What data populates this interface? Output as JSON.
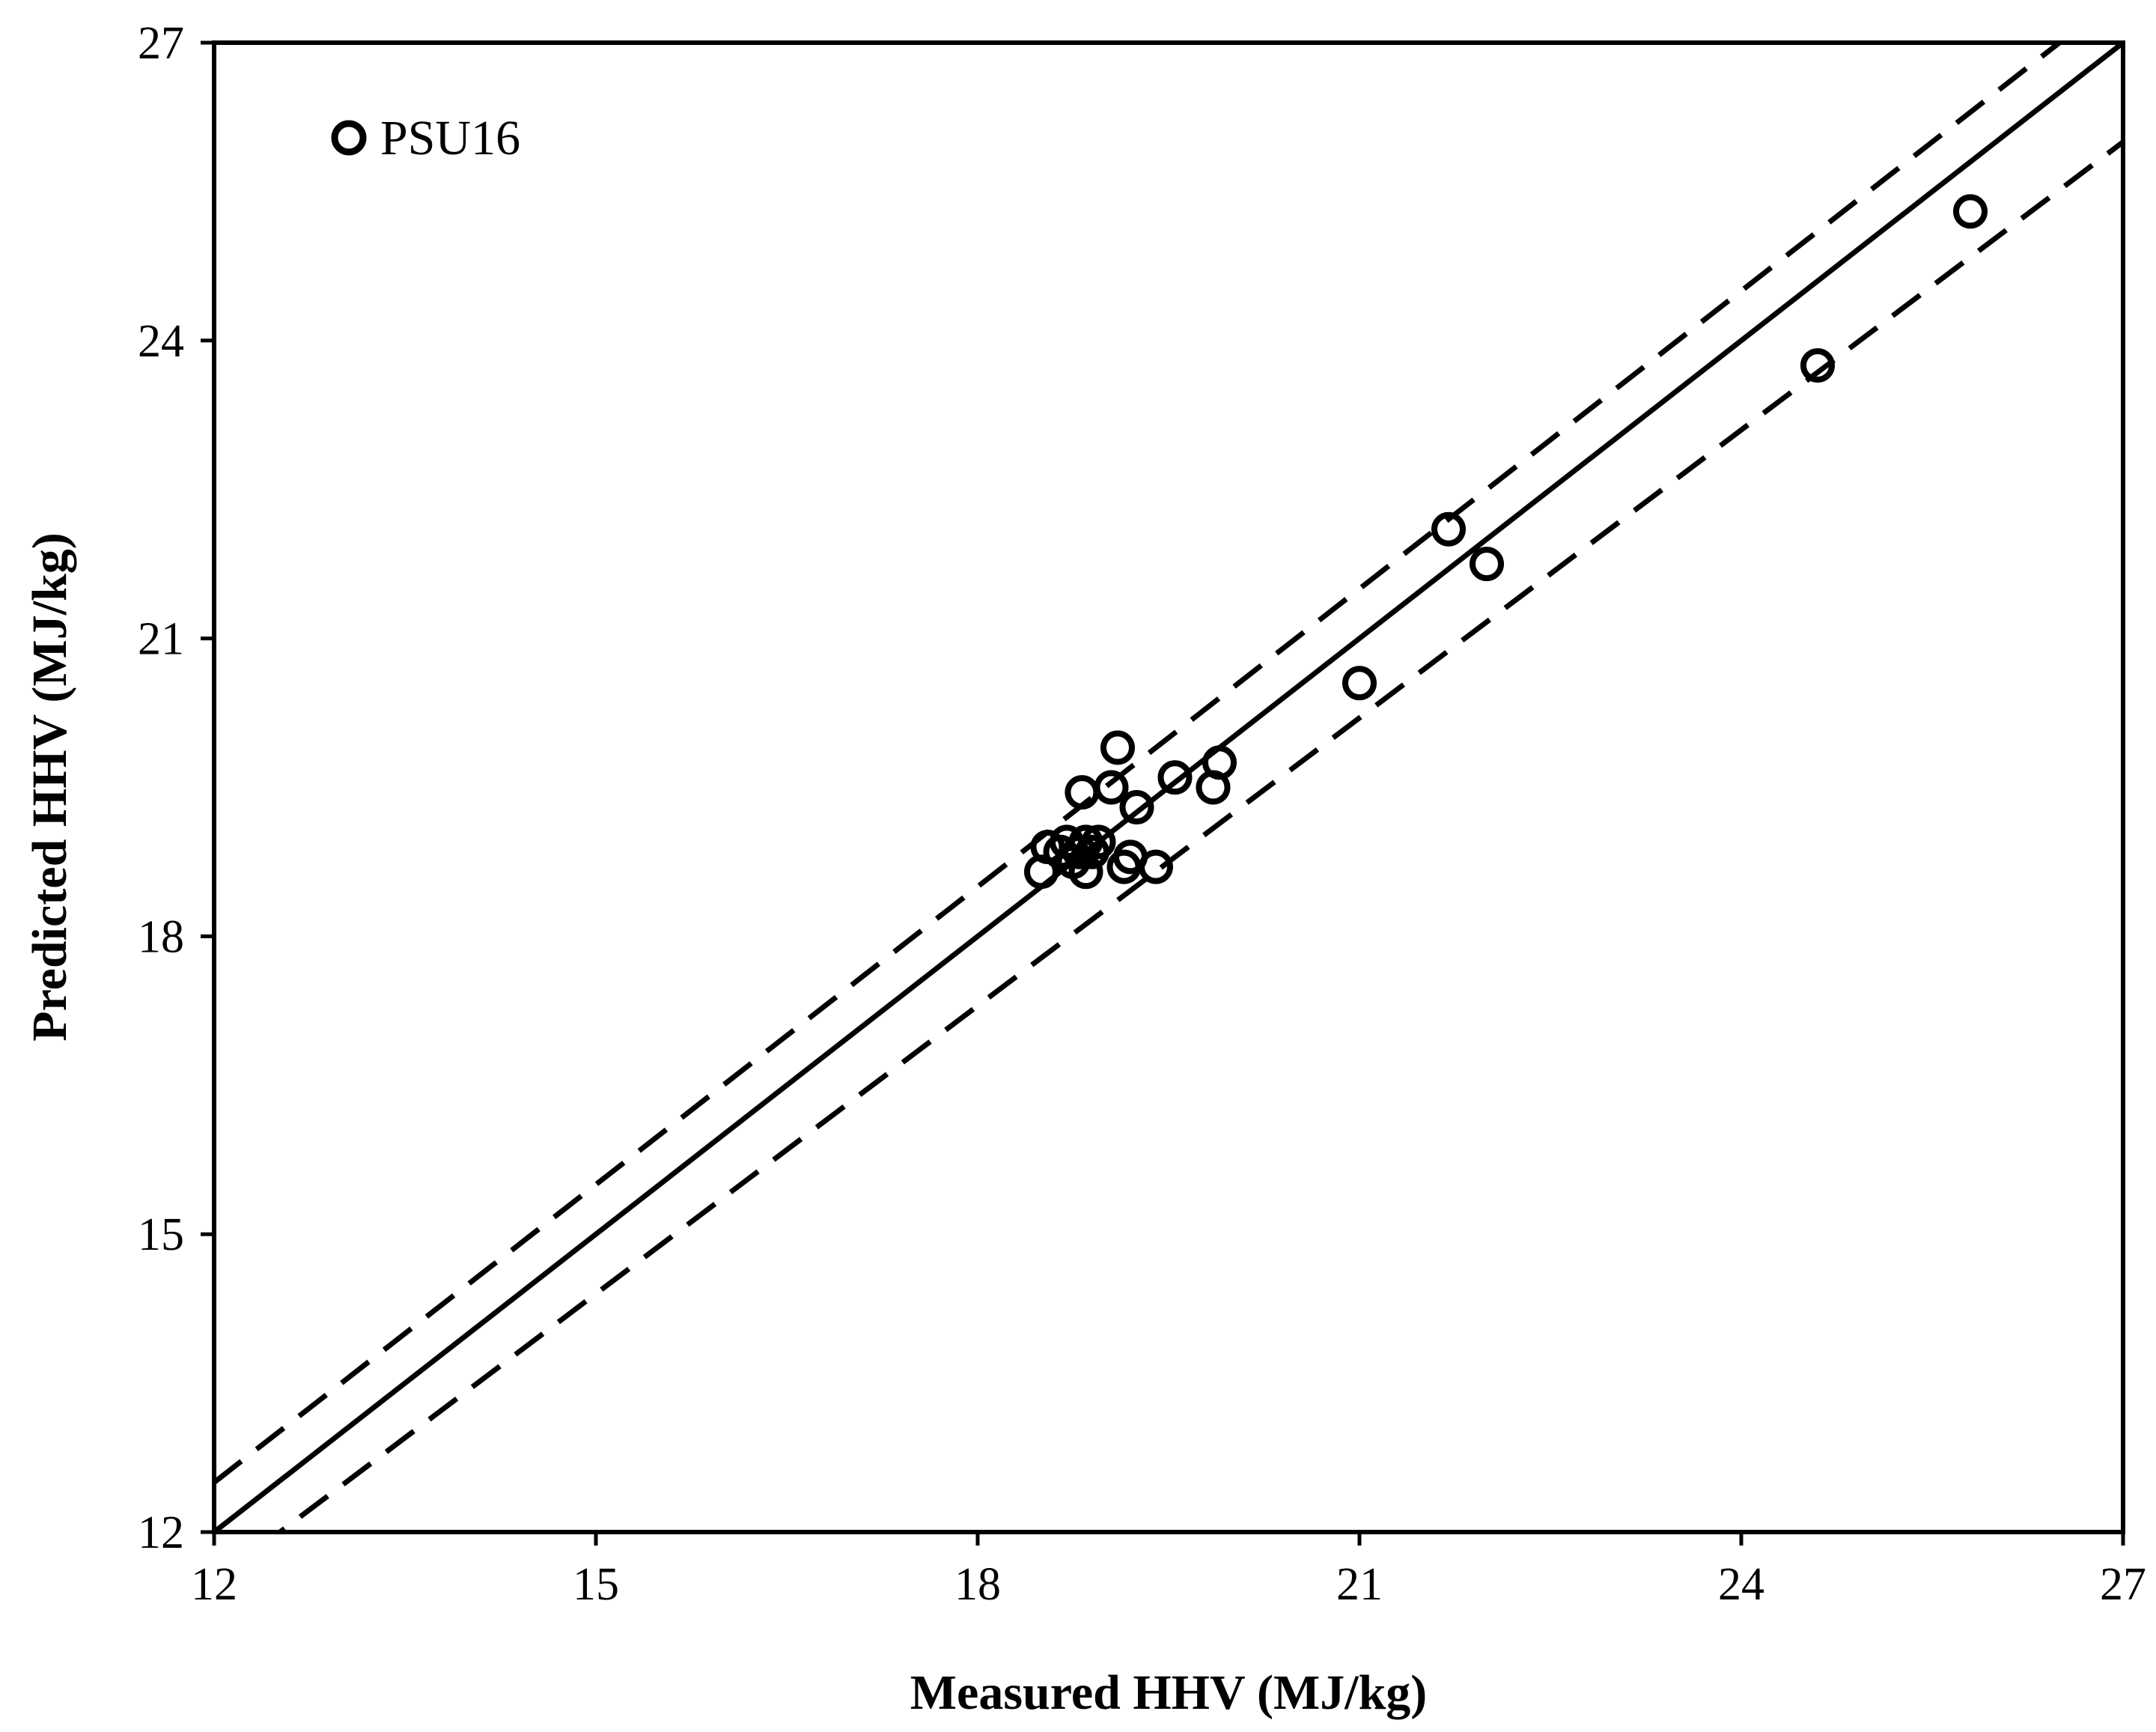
{
  "chart_data": {
    "type": "scatter",
    "xlabel": "Measured HHV (MJ/kg)",
    "ylabel": "Predicted HHV (MJ/kg)",
    "xlim": [
      12,
      27
    ],
    "ylim": [
      12,
      27
    ],
    "xticks": [
      "12",
      "15",
      "18",
      "21",
      "24",
      "27"
    ],
    "yticks": [
      "12",
      "15",
      "18",
      "21",
      "24",
      "27"
    ],
    "grid": false,
    "legend_position": "top-left",
    "series": [
      {
        "name": "PSU16",
        "marker": "open-circle",
        "points": [
          {
            "x": 18.5,
            "y": 18.65
          },
          {
            "x": 18.55,
            "y": 18.9
          },
          {
            "x": 18.65,
            "y": 18.85
          },
          {
            "x": 18.7,
            "y": 18.95
          },
          {
            "x": 18.75,
            "y": 18.75
          },
          {
            "x": 18.8,
            "y": 18.85
          },
          {
            "x": 18.85,
            "y": 18.95
          },
          {
            "x": 18.85,
            "y": 18.65
          },
          {
            "x": 18.9,
            "y": 18.85
          },
          {
            "x": 18.95,
            "y": 18.95
          },
          {
            "x": 19.15,
            "y": 18.7
          },
          {
            "x": 19.2,
            "y": 18.8
          },
          {
            "x": 19.4,
            "y": 18.7
          },
          {
            "x": 18.82,
            "y": 19.45
          },
          {
            "x": 19.05,
            "y": 19.5
          },
          {
            "x": 19.1,
            "y": 19.9
          },
          {
            "x": 19.25,
            "y": 19.3
          },
          {
            "x": 19.55,
            "y": 19.6
          },
          {
            "x": 19.85,
            "y": 19.5
          },
          {
            "x": 19.9,
            "y": 19.75
          },
          {
            "x": 21.0,
            "y": 20.55
          },
          {
            "x": 21.7,
            "y": 22.1
          },
          {
            "x": 22.0,
            "y": 21.75
          },
          {
            "x": 24.6,
            "y": 23.75
          },
          {
            "x": 25.8,
            "y": 25.3
          }
        ]
      }
    ],
    "reference_lines": [
      {
        "style": "solid",
        "x": [
          12,
          27
        ],
        "y": [
          12,
          27
        ]
      },
      {
        "style": "dashed",
        "x": [
          12,
          27
        ],
        "y": [
          12.5,
          27.5
        ]
      },
      {
        "style": "dashed",
        "x": [
          12,
          27
        ],
        "y": [
          11.5,
          26.0
        ]
      }
    ]
  }
}
